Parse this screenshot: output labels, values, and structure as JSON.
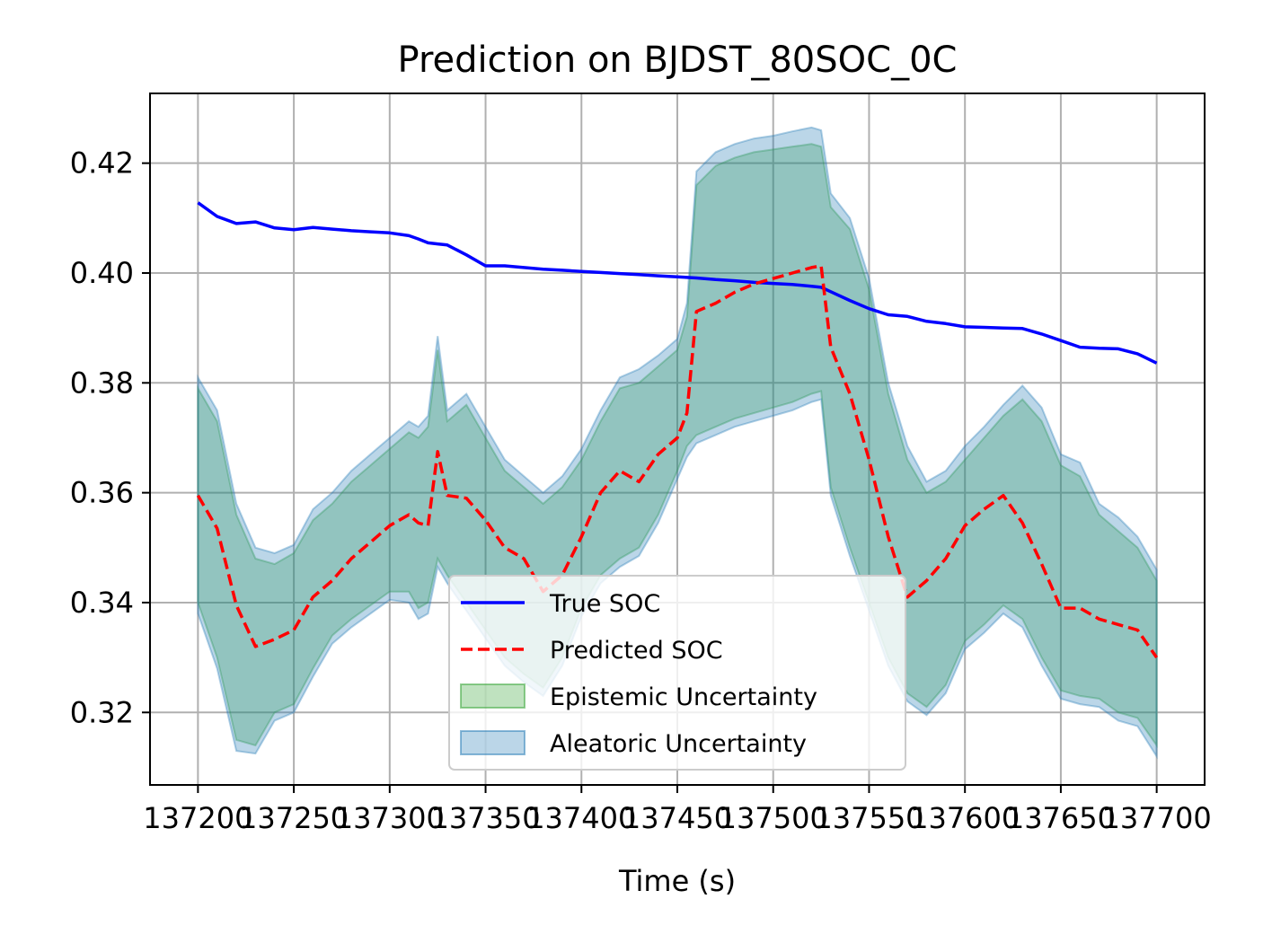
{
  "chart_data": {
    "type": "line",
    "title": "Prediction on BJDST_80SOC_0C",
    "xlabel": "Time (s)",
    "ylabel": "",
    "xlim": [
      137175,
      137725
    ],
    "ylim": [
      0.3068,
      0.4327
    ],
    "grid": true,
    "legend_position": "lower-center",
    "x_ticks": [
      {
        "value": 137200,
        "label": "137200"
      },
      {
        "value": 137250,
        "label": "137250"
      },
      {
        "value": 137300,
        "label": "137300"
      },
      {
        "value": 137350,
        "label": "137350"
      },
      {
        "value": 137400,
        "label": "137400"
      },
      {
        "value": 137450,
        "label": "137450"
      },
      {
        "value": 137500,
        "label": "137500"
      },
      {
        "value": 137550,
        "label": "137550"
      },
      {
        "value": 137600,
        "label": "137600"
      },
      {
        "value": 137650,
        "label": "137650"
      },
      {
        "value": 137700,
        "label": "137700"
      }
    ],
    "y_ticks": [
      {
        "value": 0.32,
        "label": "0.32"
      },
      {
        "value": 0.34,
        "label": "0.34"
      },
      {
        "value": 0.36,
        "label": "0.36"
      },
      {
        "value": 0.38,
        "label": "0.38"
      },
      {
        "value": 0.4,
        "label": "0.40"
      },
      {
        "value": 0.42,
        "label": "0.42"
      }
    ],
    "x": [
      137200,
      137210,
      137220,
      137230,
      137240,
      137250,
      137260,
      137270,
      137280,
      137290,
      137300,
      137310,
      137315,
      137320,
      137325,
      137330,
      137340,
      137350,
      137360,
      137370,
      137380,
      137390,
      137400,
      137410,
      137420,
      137430,
      137440,
      137450,
      137455,
      137460,
      137470,
      137480,
      137490,
      137500,
      137510,
      137520,
      137525,
      137530,
      137540,
      137550,
      137560,
      137570,
      137580,
      137590,
      137600,
      137610,
      137620,
      137630,
      137640,
      137650,
      137660,
      137670,
      137680,
      137690,
      137700
    ],
    "series": [
      {
        "name": "True SOC",
        "color": "#0000ff",
        "style": "solid",
        "values": [
          0.4128,
          0.4103,
          0.409,
          0.4093,
          0.4082,
          0.4079,
          0.4083,
          0.408,
          0.4077,
          0.4075,
          0.4073,
          0.4068,
          0.4062,
          0.4055,
          0.4053,
          0.4051,
          0.4033,
          0.4013,
          0.4013,
          0.401,
          0.4007,
          0.4005,
          0.4003,
          0.4001,
          0.3999,
          0.3997,
          0.3995,
          0.3993,
          0.3992,
          0.3991,
          0.3988,
          0.3986,
          0.3983,
          0.3981,
          0.3979,
          0.3976,
          0.3974,
          0.3966,
          0.395,
          0.3935,
          0.3924,
          0.3921,
          0.3912,
          0.3908,
          0.3902,
          0.3901,
          0.39,
          0.3899,
          0.3889,
          0.3877,
          0.3865,
          0.3863,
          0.3862,
          0.3853,
          0.3836
        ]
      },
      {
        "name": "Predicted SOC",
        "color": "#ff0000",
        "style": "dashed",
        "values": [
          0.3595,
          0.3535,
          0.3395,
          0.332,
          0.3333,
          0.335,
          0.341,
          0.344,
          0.348,
          0.351,
          0.354,
          0.356,
          0.3545,
          0.354,
          0.3675,
          0.3595,
          0.359,
          0.355,
          0.35,
          0.348,
          0.342,
          0.345,
          0.352,
          0.36,
          0.364,
          0.362,
          0.367,
          0.37,
          0.3745,
          0.393,
          0.3945,
          0.3965,
          0.398,
          0.399,
          0.4,
          0.401,
          0.4013,
          0.3865,
          0.378,
          0.366,
          0.352,
          0.341,
          0.344,
          0.348,
          0.354,
          0.357,
          0.3595,
          0.3545,
          0.347,
          0.339,
          0.339,
          0.337,
          0.336,
          0.335,
          0.33
        ]
      }
    ],
    "bands": [
      {
        "name": "Epistemic Uncertainty",
        "color": "#2ca02c",
        "opacity": 0.28,
        "lower": [
          0.34,
          0.33,
          0.315,
          0.314,
          0.32,
          0.3215,
          0.328,
          0.334,
          0.337,
          0.3395,
          0.342,
          0.342,
          0.339,
          0.34,
          0.348,
          0.345,
          0.34,
          0.335,
          0.33,
          0.327,
          0.3245,
          0.33,
          0.339,
          0.345,
          0.348,
          0.35,
          0.356,
          0.364,
          0.3685,
          0.3705,
          0.372,
          0.3735,
          0.3745,
          0.3755,
          0.3765,
          0.378,
          0.3785,
          0.361,
          0.35,
          0.34,
          0.33,
          0.3235,
          0.321,
          0.325,
          0.333,
          0.336,
          0.3395,
          0.337,
          0.33,
          0.324,
          0.323,
          0.3225,
          0.32,
          0.319,
          0.314
        ],
        "upper": [
          0.379,
          0.373,
          0.356,
          0.348,
          0.347,
          0.349,
          0.355,
          0.358,
          0.362,
          0.365,
          0.368,
          0.371,
          0.37,
          0.372,
          0.386,
          0.373,
          0.376,
          0.37,
          0.364,
          0.361,
          0.358,
          0.361,
          0.366,
          0.373,
          0.379,
          0.38,
          0.383,
          0.386,
          0.392,
          0.416,
          0.4195,
          0.421,
          0.422,
          0.4225,
          0.423,
          0.4235,
          0.423,
          0.412,
          0.408,
          0.397,
          0.378,
          0.366,
          0.36,
          0.362,
          0.366,
          0.37,
          0.374,
          0.377,
          0.373,
          0.365,
          0.363,
          0.356,
          0.353,
          0.35,
          0.344
        ]
      },
      {
        "name": "Aleatoric Uncertainty",
        "color": "#1f77b4",
        "opacity": 0.3,
        "lower": [
          0.338,
          0.328,
          0.313,
          0.3125,
          0.3185,
          0.32,
          0.3265,
          0.3325,
          0.3355,
          0.338,
          0.3405,
          0.34,
          0.337,
          0.338,
          0.3465,
          0.3435,
          0.3385,
          0.3335,
          0.3285,
          0.3255,
          0.323,
          0.3285,
          0.3375,
          0.3435,
          0.3465,
          0.3485,
          0.3545,
          0.3625,
          0.3665,
          0.369,
          0.3705,
          0.372,
          0.373,
          0.374,
          0.375,
          0.3765,
          0.377,
          0.3595,
          0.3485,
          0.3385,
          0.3285,
          0.322,
          0.3195,
          0.3235,
          0.3315,
          0.3345,
          0.338,
          0.3355,
          0.3285,
          0.3225,
          0.3215,
          0.321,
          0.3185,
          0.3175,
          0.312
        ],
        "upper": [
          0.381,
          0.375,
          0.358,
          0.35,
          0.349,
          0.3505,
          0.357,
          0.36,
          0.364,
          0.367,
          0.37,
          0.373,
          0.372,
          0.374,
          0.3885,
          0.375,
          0.378,
          0.372,
          0.366,
          0.363,
          0.36,
          0.363,
          0.368,
          0.375,
          0.381,
          0.3825,
          0.385,
          0.388,
          0.3945,
          0.4185,
          0.422,
          0.4235,
          0.4245,
          0.425,
          0.4258,
          0.4265,
          0.426,
          0.4145,
          0.41,
          0.399,
          0.38,
          0.3685,
          0.362,
          0.364,
          0.3685,
          0.372,
          0.376,
          0.3795,
          0.3755,
          0.367,
          0.3655,
          0.358,
          0.3555,
          0.352,
          0.346
        ]
      }
    ],
    "legend": [
      {
        "label": "True SOC",
        "kind": "line",
        "color": "#0000ff",
        "style": "solid"
      },
      {
        "label": "Predicted SOC",
        "kind": "line",
        "color": "#ff0000",
        "style": "dashed"
      },
      {
        "label": "Epistemic Uncertainty",
        "kind": "patch",
        "color": "#2ca02c"
      },
      {
        "label": "Aleatoric Uncertainty",
        "kind": "patch",
        "color": "#1f77b4"
      }
    ]
  }
}
